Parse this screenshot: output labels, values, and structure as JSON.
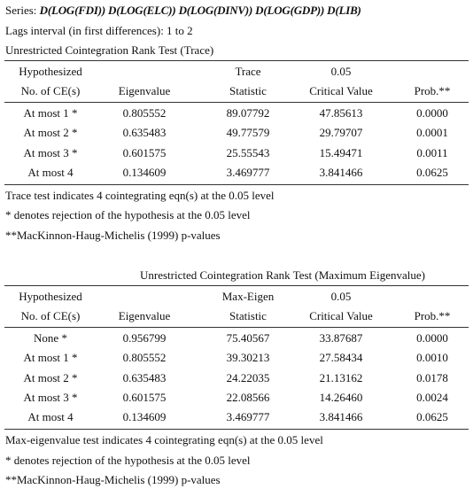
{
  "series": {
    "label": "Series:",
    "text": "D(LOG(FDI)) D(LOG(ELC)) D(LOG(DINV)) D(LOG(GDP)) D(LIB)"
  },
  "lags": "Lags interval (in first differences): 1 to 2",
  "trace": {
    "title": "Unrestricted Cointegration Rank Test (Trace)",
    "columns": [
      {
        "top": "Hypothesized",
        "label": "No. of CE(s)"
      },
      {
        "label": "Eigenvalue"
      },
      {
        "top": "Trace",
        "label": "Statistic"
      },
      {
        "top": "0.05",
        "label": "Critical Value"
      },
      {
        "label": "Prob.**"
      }
    ],
    "rows": [
      [
        "At most 1 *",
        "0.805552",
        "89.07792",
        "47.85613",
        "0.0000"
      ],
      [
        "At most 2 *",
        "0.635483",
        "49.77579",
        "29.79707",
        "0.0001"
      ],
      [
        "At most 3 *",
        "0.601575",
        "25.55543",
        "15.49471",
        "0.0011"
      ],
      [
        "At most 4",
        "0.134609",
        "3.469777",
        "3.841466",
        "0.0625"
      ]
    ],
    "notes": [
      "Trace test indicates 4 cointegrating eqn(s) at the 0.05 level",
      "* denotes rejection of the hypothesis at the 0.05 level",
      "**MacKinnon-Haug-Michelis (1999) p-values"
    ]
  },
  "maxeig": {
    "title": "Unrestricted Cointegration Rank Test (Maximum Eigenvalue)",
    "columns": [
      {
        "top": "Hypothesized",
        "label": "No. of CE(s)"
      },
      {
        "label": "Eigenvalue"
      },
      {
        "top": "Max-Eigen",
        "label": "Statistic"
      },
      {
        "top": "0.05",
        "label": "Critical Value"
      },
      {
        "label": "Prob.**"
      }
    ],
    "rows": [
      [
        "None *",
        "0.956799",
        "75.40567",
        "33.87687",
        "0.0000"
      ],
      [
        "At most 1 *",
        "0.805552",
        "39.30213",
        "27.58434",
        "0.0010"
      ],
      [
        "At most 2 *",
        "0.635483",
        "24.22035",
        "21.13162",
        "0.0178"
      ],
      [
        "At most 3 *",
        "0.601575",
        "22.08566",
        "14.26460",
        "0.0024"
      ],
      [
        "At most 4",
        "0.134609",
        "3.469777",
        "3.841466",
        "0.0625"
      ]
    ],
    "notes": [
      "Max-eigenvalue test indicates 4 cointegrating eqn(s) at the 0.05 level",
      "* denotes rejection of the hypothesis at the 0.05 level",
      "**MacKinnon-Haug-Michelis (1999) p-values"
    ]
  }
}
